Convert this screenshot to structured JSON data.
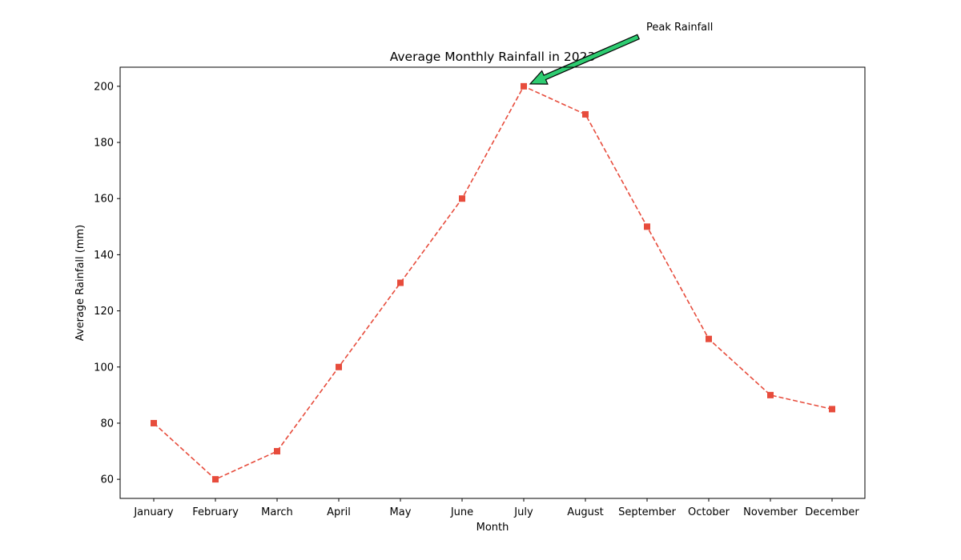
{
  "chart_data": {
    "type": "line",
    "title": "Average Monthly Rainfall in 2023",
    "xlabel": "Month",
    "ylabel": "Average Rainfall (mm)",
    "categories": [
      "January",
      "February",
      "March",
      "April",
      "May",
      "June",
      "July",
      "August",
      "September",
      "October",
      "November",
      "December"
    ],
    "series": [
      {
        "values": [
          80,
          60,
          70,
          100,
          130,
          160,
          200,
          190,
          150,
          110,
          90,
          85
        ],
        "color": "#e74c3c",
        "line_style": "dashed",
        "marker": "square"
      }
    ],
    "ylim": [
      53.2,
      206.8
    ],
    "yticks": [
      60,
      80,
      100,
      120,
      140,
      160,
      180,
      200
    ],
    "grid": false,
    "annotation": {
      "text": "Peak Rainfall",
      "target_category": "July",
      "target_value": 200,
      "arrow_color": "#2ecc71"
    }
  }
}
